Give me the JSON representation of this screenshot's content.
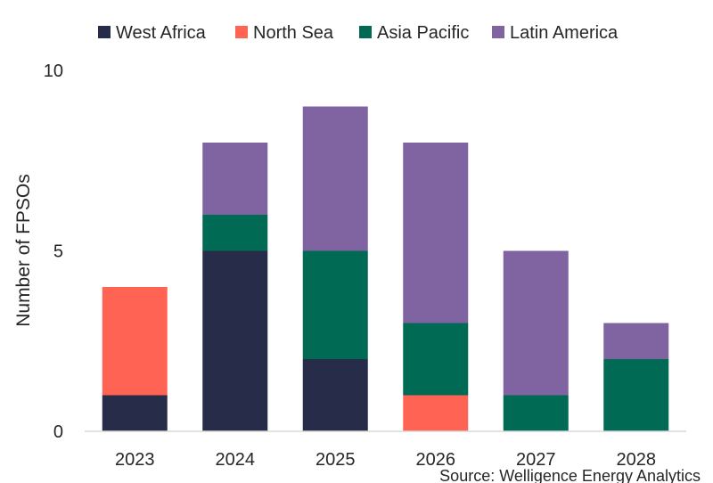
{
  "chart_data": {
    "type": "bar",
    "stacked": true,
    "categories": [
      "2023",
      "2024",
      "2025",
      "2026",
      "2027",
      "2028"
    ],
    "series": [
      {
        "name": "West Africa",
        "color": "#272d48",
        "values": [
          1,
          5,
          2,
          0,
          0,
          0
        ]
      },
      {
        "name": "North Sea",
        "color": "#ff6353",
        "values": [
          3,
          0,
          0,
          1,
          0,
          0
        ]
      },
      {
        "name": "Asia Pacific",
        "color": "#006a54",
        "values": [
          0,
          1,
          3,
          2,
          1,
          2
        ]
      },
      {
        "name": "Latin America",
        "color": "#8064a2",
        "values": [
          0,
          2,
          4,
          5,
          4,
          1
        ]
      }
    ],
    "ylabel": "Number of FPSOs",
    "xlabel": "",
    "ylim": [
      0,
      10
    ],
    "yticks": [
      "0",
      "5",
      "10"
    ],
    "grid": false,
    "legend_position": "top"
  },
  "source": "Source: Welligence Energy Analytics"
}
